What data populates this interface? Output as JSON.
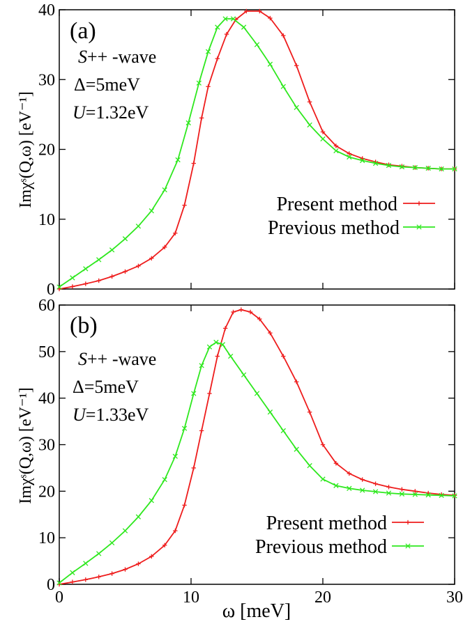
{
  "xlabel": "ω [meV]",
  "chart_data": [
    {
      "type": "line",
      "panel_label": "(a)",
      "annotations": {
        "wave_prefix": "S",
        "wave_suffix": "++ -wave",
        "delta": "Δ=5meV",
        "u_prefix": "U",
        "u_value": "=1.32eV"
      },
      "ylabel": "Imχˢ(Q,ω) [eV⁻¹]",
      "xlabel": "ω [meV]",
      "xlim": [
        0,
        30
      ],
      "ylim": [
        0,
        40
      ],
      "x_ticks": [
        0,
        10,
        20,
        30
      ],
      "y_ticks": [
        0,
        10,
        20,
        30,
        40
      ],
      "legend": {
        "position": "center-right"
      },
      "series": [
        {
          "name": "Present method",
          "color": "#ee1c1c",
          "marker": "+",
          "points": [
            [
              0,
              0
            ],
            [
              1,
              0.35
            ],
            [
              2,
              0.75
            ],
            [
              3,
              1.2
            ],
            [
              4,
              1.8
            ],
            [
              5,
              2.5
            ],
            [
              6,
              3.3
            ],
            [
              7,
              4.4
            ],
            [
              8,
              6.0
            ],
            [
              8.8,
              8.0
            ],
            [
              9.5,
              12
            ],
            [
              10.2,
              18
            ],
            [
              10.8,
              24.5
            ],
            [
              11.3,
              29
            ],
            [
              12,
              33
            ],
            [
              12.7,
              36.5
            ],
            [
              13.4,
              38.6
            ],
            [
              14.2,
              39.8
            ],
            [
              15.2,
              39.8
            ],
            [
              16,
              38.8
            ],
            [
              17,
              36.3
            ],
            [
              18,
              32
            ],
            [
              19,
              26.8
            ],
            [
              20,
              22.5
            ],
            [
              21,
              20.5
            ],
            [
              22,
              19.4
            ],
            [
              23,
              18.7
            ],
            [
              24,
              18.2
            ],
            [
              25,
              17.8
            ],
            [
              26,
              17.6
            ],
            [
              27,
              17.4
            ],
            [
              28,
              17.3
            ],
            [
              29,
              17.2
            ],
            [
              30,
              17.2
            ]
          ]
        },
        {
          "name": "Previous method",
          "color": "#2ee81e",
          "marker": "x",
          "points": [
            [
              0,
              0.3
            ],
            [
              1,
              1.6
            ],
            [
              2,
              2.9
            ],
            [
              3,
              4.2
            ],
            [
              4,
              5.6
            ],
            [
              5,
              7.2
            ],
            [
              6,
              9.0
            ],
            [
              7,
              11.2
            ],
            [
              8,
              14.2
            ],
            [
              9,
              18.5
            ],
            [
              9.8,
              23.8
            ],
            [
              10.6,
              29.5
            ],
            [
              11.3,
              34
            ],
            [
              12,
              37.5
            ],
            [
              12.6,
              38.7
            ],
            [
              13.2,
              38.7
            ],
            [
              14,
              37.5
            ],
            [
              15,
              35
            ],
            [
              16,
              32.2
            ],
            [
              17,
              29
            ],
            [
              18,
              26
            ],
            [
              19,
              23.5
            ],
            [
              20,
              21.5
            ],
            [
              21,
              19.8
            ],
            [
              22,
              18.9
            ],
            [
              23,
              18.4
            ],
            [
              24,
              18.0
            ],
            [
              25,
              17.7
            ],
            [
              26,
              17.5
            ],
            [
              27,
              17.4
            ],
            [
              28,
              17.3
            ],
            [
              29,
              17.2
            ],
            [
              30,
              17.2
            ]
          ]
        }
      ]
    },
    {
      "type": "line",
      "panel_label": "(b)",
      "annotations": {
        "wave_prefix": "S",
        "wave_suffix": "++ -wave",
        "delta": "Δ=5meV",
        "u_prefix": "U",
        "u_value": "=1.33eV"
      },
      "ylabel": "Imχˢ(Q,ω) [eV⁻¹]",
      "xlabel": "ω [meV]",
      "xlim": [
        0,
        30
      ],
      "ylim": [
        0,
        60
      ],
      "x_ticks": [
        0,
        10,
        20,
        30
      ],
      "y_ticks": [
        0,
        10,
        20,
        30,
        40,
        50,
        60
      ],
      "legend": {
        "position": "bottom-right"
      },
      "series": [
        {
          "name": "Present method",
          "color": "#ee1c1c",
          "marker": "+",
          "points": [
            [
              0,
              0
            ],
            [
              1,
              0.5
            ],
            [
              2,
              1.0
            ],
            [
              3,
              1.6
            ],
            [
              4,
              2.3
            ],
            [
              5,
              3.2
            ],
            [
              6,
              4.4
            ],
            [
              7,
              6.0
            ],
            [
              8,
              8.4
            ],
            [
              8.8,
              11.5
            ],
            [
              9.5,
              17
            ],
            [
              10.2,
              25
            ],
            [
              10.8,
              33
            ],
            [
              11.4,
              41
            ],
            [
              12,
              49
            ],
            [
              12.6,
              55
            ],
            [
              13.2,
              58.5
            ],
            [
              13.8,
              59
            ],
            [
              14.5,
              58.5
            ],
            [
              15.2,
              57
            ],
            [
              16,
              54
            ],
            [
              17,
              49
            ],
            [
              18,
              43.5
            ],
            [
              19,
              37
            ],
            [
              20,
              30
            ],
            [
              21,
              26
            ],
            [
              22,
              23.8
            ],
            [
              23,
              22.5
            ],
            [
              24,
              21.6
            ],
            [
              25,
              20.9
            ],
            [
              26,
              20.4
            ],
            [
              27,
              20
            ],
            [
              28,
              19.6
            ],
            [
              29,
              19.3
            ],
            [
              30,
              19.1
            ]
          ]
        },
        {
          "name": "Previous method",
          "color": "#2ee81e",
          "marker": "x",
          "points": [
            [
              0,
              0.3
            ],
            [
              1,
              2.5
            ],
            [
              2,
              4.5
            ],
            [
              3,
              6.6
            ],
            [
              4,
              8.9
            ],
            [
              5,
              11.5
            ],
            [
              6,
              14.5
            ],
            [
              7,
              18
            ],
            [
              8,
              22.5
            ],
            [
              8.8,
              27.5
            ],
            [
              9.5,
              33.5
            ],
            [
              10.2,
              41
            ],
            [
              10.8,
              47
            ],
            [
              11.4,
              51
            ],
            [
              11.9,
              52
            ],
            [
              12.4,
              51.5
            ],
            [
              13,
              49
            ],
            [
              14,
              45
            ],
            [
              15,
              41
            ],
            [
              16,
              37
            ],
            [
              17,
              33
            ],
            [
              18,
              29
            ],
            [
              19,
              25.5
            ],
            [
              20,
              22.6
            ],
            [
              21,
              21.2
            ],
            [
              22,
              20.6
            ],
            [
              23,
              20.2
            ],
            [
              24,
              19.9
            ],
            [
              25,
              19.6
            ],
            [
              26,
              19.4
            ],
            [
              27,
              19.3
            ],
            [
              28,
              19.2
            ],
            [
              29,
              19.1
            ],
            [
              30,
              19.0
            ]
          ]
        }
      ]
    }
  ]
}
